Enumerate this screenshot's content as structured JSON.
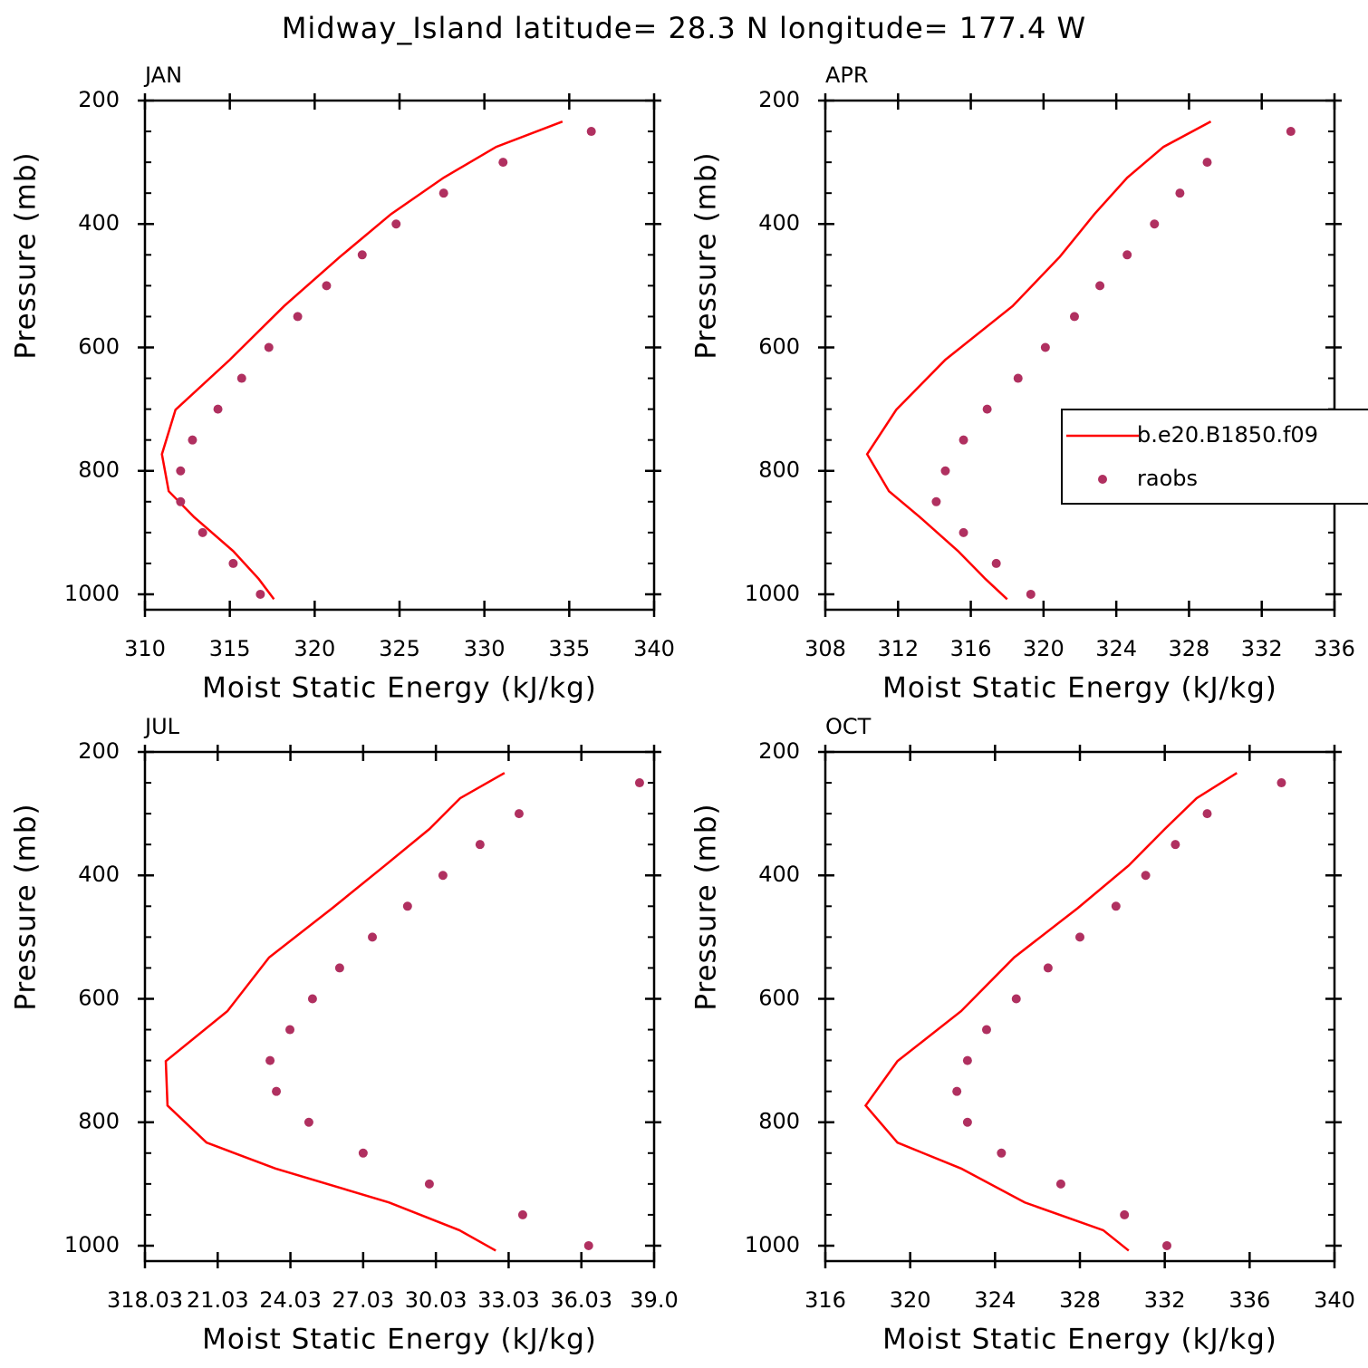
{
  "title": "Midway_Island  latitude= 28.3 N longitude= 177.4 W",
  "chart_data": [
    {
      "type": "line",
      "subtitle": "JAN",
      "xlabel": "Moist Static Energy (kJ/kg)",
      "ylabel": "Pressure (mb)",
      "xlim": [
        310,
        340
      ],
      "xticks": [
        310,
        315,
        320,
        325,
        330,
        335,
        340
      ],
      "ylim": [
        1025,
        200
      ],
      "yticks": [
        200,
        400,
        600,
        800,
        1000
      ],
      "yminorticks": [
        250,
        300,
        350,
        450,
        500,
        550,
        650,
        700,
        750,
        850,
        900,
        950
      ],
      "series": [
        {
          "name": "b.e20.B1850.f09",
          "mode": "line",
          "color": "#ff0000",
          "x": [
            334.6,
            330.7,
            327.6,
            324.5,
            321.5,
            318.2,
            315.0,
            311.8,
            311.0,
            311.4,
            312.9,
            315.2,
            316.7,
            317.6
          ],
          "y": [
            234,
            275,
            325,
            384,
            453,
            533,
            620,
            701,
            773,
            833,
            875,
            930,
            975,
            1008
          ]
        },
        {
          "name": "raobs",
          "mode": "markers",
          "color": "#b03060",
          "x": [
            336.3,
            331.1,
            327.6,
            324.8,
            322.8,
            320.7,
            319.0,
            317.3,
            315.7,
            314.3,
            312.8,
            312.1,
            312.1,
            313.4,
            315.2,
            316.8
          ],
          "y": [
            250,
            300,
            350,
            400,
            450,
            500,
            550,
            600,
            650,
            700,
            750,
            800,
            850,
            900,
            950,
            1000
          ]
        }
      ]
    },
    {
      "type": "line",
      "subtitle": "APR",
      "xlabel": "Moist Static Energy (kJ/kg)",
      "ylabel": "Pressure (mb)",
      "legend": "right",
      "xlim": [
        308,
        336
      ],
      "xticks": [
        308,
        312,
        316,
        320,
        324,
        328,
        332,
        336
      ],
      "ylim": [
        1025,
        200
      ],
      "yticks": [
        200,
        400,
        600,
        800,
        1000
      ],
      "yminorticks": [
        250,
        300,
        350,
        450,
        500,
        550,
        650,
        700,
        750,
        850,
        900,
        950
      ],
      "series": [
        {
          "name": "b.e20.B1850.f09",
          "mode": "line",
          "color": "#ff0000",
          "x": [
            329.2,
            326.6,
            324.6,
            322.8,
            320.9,
            318.3,
            314.6,
            311.9,
            310.3,
            311.5,
            313.2,
            315.3,
            316.8,
            318.0
          ],
          "y": [
            234,
            275,
            325,
            384,
            453,
            533,
            620,
            701,
            773,
            833,
            875,
            930,
            975,
            1008
          ]
        },
        {
          "name": "raobs",
          "mode": "markers",
          "color": "#b03060",
          "x": [
            333.6,
            329.0,
            327.5,
            326.1,
            324.6,
            323.1,
            321.7,
            320.1,
            318.6,
            316.9,
            315.6,
            314.6,
            314.1,
            315.6,
            317.4,
            319.3
          ],
          "y": [
            250,
            300,
            350,
            400,
            450,
            500,
            550,
            600,
            650,
            700,
            750,
            800,
            850,
            900,
            950,
            1000
          ]
        }
      ]
    },
    {
      "type": "line",
      "subtitle": "JUL",
      "xlabel": "Moist Static Energy (kJ/kg)",
      "ylabel": "Pressure (mb)",
      "xlim": [
        318.03,
        339.03
      ],
      "xticks": [
        {
          "value": 318.03,
          "label": "318.03"
        },
        {
          "value": 321.03,
          "label": "21.03"
        },
        {
          "value": 324.03,
          "label": "24.03"
        },
        {
          "value": 327.03,
          "label": "27.03"
        },
        {
          "value": 330.03,
          "label": "30.03"
        },
        {
          "value": 333.03,
          "label": "33.03"
        },
        {
          "value": 336.03,
          "label": "36.03"
        },
        {
          "value": 339.03,
          "label": "39.0"
        }
      ],
      "ylim": [
        1025,
        200
      ],
      "yticks": [
        200,
        400,
        600,
        800,
        1000
      ],
      "yminorticks": [
        250,
        300,
        350,
        450,
        500,
        550,
        650,
        700,
        750,
        850,
        900,
        950
      ],
      "series": [
        {
          "name": "b.e20.B1850.f09",
          "mode": "line",
          "color": "#ff0000",
          "x": [
            332.86,
            331.03,
            329.76,
            327.93,
            325.76,
            323.15,
            321.43,
            318.89,
            318.96,
            320.57,
            323.41,
            328.1,
            331.0,
            332.5
          ],
          "y": [
            234,
            275,
            325,
            384,
            453,
            533,
            620,
            701,
            773,
            833,
            875,
            930,
            975,
            1008
          ]
        },
        {
          "name": "raobs",
          "mode": "markers",
          "color": "#b03060",
          "x": [
            338.43,
            333.46,
            331.85,
            330.32,
            328.86,
            327.41,
            326.06,
            324.94,
            324.01,
            323.19,
            323.45,
            324.79,
            327.03,
            329.76,
            333.61,
            336.33
          ],
          "y": [
            250,
            300,
            350,
            400,
            450,
            500,
            550,
            600,
            650,
            700,
            750,
            800,
            850,
            900,
            950,
            1000
          ]
        }
      ]
    },
    {
      "type": "line",
      "subtitle": "OCT",
      "xlabel": "Moist Static Energy (kJ/kg)",
      "ylabel": "Pressure (mb)",
      "xlim": [
        316,
        340
      ],
      "xticks": [
        316,
        320,
        324,
        328,
        332,
        336,
        340
      ],
      "ylim": [
        1025,
        200
      ],
      "yticks": [
        200,
        400,
        600,
        800,
        1000
      ],
      "yminorticks": [
        250,
        300,
        350,
        450,
        500,
        550,
        650,
        700,
        750,
        850,
        900,
        950
      ],
      "series": [
        {
          "name": "b.e20.B1850.f09",
          "mode": "line",
          "color": "#ff0000",
          "x": [
            335.4,
            333.5,
            332.0,
            330.3,
            327.9,
            324.9,
            322.4,
            319.4,
            317.9,
            319.4,
            322.4,
            325.4,
            329.1,
            330.3
          ],
          "y": [
            234,
            275,
            325,
            384,
            453,
            533,
            620,
            701,
            773,
            833,
            875,
            930,
            975,
            1008
          ]
        },
        {
          "name": "raobs",
          "mode": "markers",
          "color": "#b03060",
          "x": [
            337.5,
            334.0,
            332.5,
            331.1,
            329.7,
            328.0,
            326.5,
            325.0,
            323.6,
            322.7,
            322.2,
            322.7,
            324.3,
            327.1,
            330.1,
            332.1
          ],
          "y": [
            250,
            300,
            350,
            400,
            450,
            500,
            550,
            600,
            650,
            700,
            750,
            800,
            850,
            900,
            950,
            1000
          ]
        }
      ]
    }
  ]
}
